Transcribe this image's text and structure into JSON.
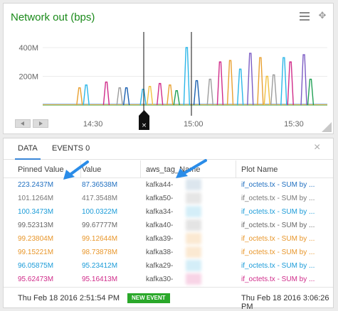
{
  "chart": {
    "title": "Network out (bps)",
    "menu_icon": "hamburger-menu-icon",
    "move_icon": "move-arrows-icon"
  },
  "chart_data": {
    "type": "line",
    "yticks": [
      "400M",
      "200M"
    ],
    "xticks": [
      "14:30",
      "15:00",
      "15:30"
    ],
    "grid": true,
    "series": [
      {
        "color": "#e8a030",
        "spikes": [
          {
            "x": "14:26",
            "y": 120
          },
          {
            "x": "14:53",
            "y": 140
          },
          {
            "x": "15:11",
            "y": 310
          },
          {
            "x": "15:20",
            "y": 330
          }
        ]
      },
      {
        "color": "#2bb6e8",
        "spikes": [
          {
            "x": "14:28",
            "y": 140
          },
          {
            "x": "14:45",
            "y": 110
          },
          {
            "x": "14:58",
            "y": 400
          },
          {
            "x": "15:14",
            "y": 250
          },
          {
            "x": "15:27",
            "y": 330
          }
        ]
      },
      {
        "color": "#9c9c9c",
        "spikes": [
          {
            "x": "14:38",
            "y": 120
          },
          {
            "x": "15:05",
            "y": 180
          },
          {
            "x": "15:24",
            "y": 210
          }
        ]
      },
      {
        "color": "#7c5cc4",
        "spikes": [
          {
            "x": "15:17",
            "y": 360
          },
          {
            "x": "15:33",
            "y": 350
          }
        ]
      },
      {
        "color": "#d02c8a",
        "spikes": [
          {
            "x": "14:34",
            "y": 160
          },
          {
            "x": "14:50",
            "y": 150
          },
          {
            "x": "15:08",
            "y": 300
          },
          {
            "x": "15:29",
            "y": 300
          }
        ]
      },
      {
        "color": "#21a055",
        "spikes": [
          {
            "x": "14:55",
            "y": 100
          },
          {
            "x": "15:35",
            "y": 180
          }
        ]
      },
      {
        "color": "#1a5fb0",
        "spikes": [
          {
            "x": "14:40",
            "y": 120
          },
          {
            "x": "15:01",
            "y": 170
          }
        ]
      },
      {
        "color": "#f0c040",
        "spikes": [
          {
            "x": "14:47",
            "y": 130
          },
          {
            "x": "15:22",
            "y": 200
          }
        ]
      }
    ]
  },
  "panel": {
    "tab_data": "DATA",
    "tab_events": "EVENTS 0",
    "columns": [
      "Pinned Value",
      "Value",
      "aws_tag_Name",
      "Plot Name"
    ],
    "rows": [
      {
        "pinned": "223.2437M",
        "value": "87.36538M",
        "name": "kafka44-",
        "plot": "if_octets.tx - SUM by ...",
        "color": "#1f6fc0",
        "blur": "#dce6ee"
      },
      {
        "pinned": "101.1264M",
        "value": "417.3548M",
        "name": "kafka50-",
        "plot": "if_octets.tx - SUM by ...",
        "color": "#777777",
        "blur": "#e6e6e6"
      },
      {
        "pinned": "100.3473M",
        "value": "100.0322M",
        "name": "kafka34-",
        "plot": "if_octets.tx - SUM by ...",
        "color": "#1a9bd8",
        "blur": "#d4eef8"
      },
      {
        "pinned": "99.52313M",
        "value": "99.67777M",
        "name": "kafka40-",
        "plot": "if_octets.tx - SUM by ...",
        "color": "#666666",
        "blur": "#e4e4e4"
      },
      {
        "pinned": "99.23804M",
        "value": "99.12644M",
        "name": "kafka39-",
        "plot": "if_octets.tx - SUM by ...",
        "color": "#e8962a",
        "blur": "#fbe9d2"
      },
      {
        "pinned": "99.15221M",
        "value": "98.73878M",
        "name": "kafka38-",
        "plot": "if_octets.tx - SUM by ...",
        "color": "#e8962a",
        "blur": "#fbe9d2"
      },
      {
        "pinned": "96.05875M",
        "value": "95.23412M",
        "name": "kafka29-",
        "plot": "if_octets.tx - SUM by ...",
        "color": "#1a9bd8",
        "blur": "#d4eef8"
      },
      {
        "pinned": "95.62473M",
        "value": "95.16413M",
        "name": "kafka30-",
        "plot": "if_octets.tx - SUM by ...",
        "color": "#d02c8a",
        "blur": "#f8d4e6"
      }
    ],
    "footer_start": "Thu Feb 18 2016 2:51:54 PM",
    "new_event_label": "NEW EVENT",
    "footer_end": "Thu Feb 18 2016 3:06:26 PM"
  }
}
